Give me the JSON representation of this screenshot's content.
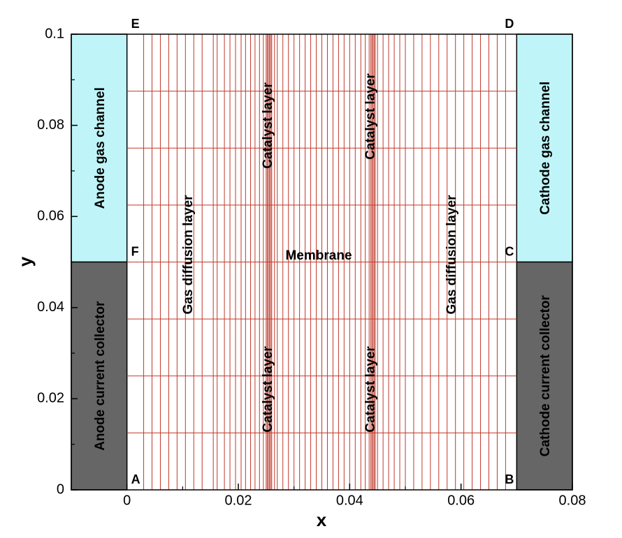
{
  "chart_data": {
    "type": "mesh",
    "x_label": "x",
    "y_label": "y",
    "xlim": [
      -0.01,
      0.08
    ],
    "ylim": [
      0,
      0.1
    ],
    "xticks": [
      0,
      0.02,
      0.04,
      0.06,
      0.08
    ],
    "yticks": [
      0,
      0.02,
      0.04,
      0.06,
      0.08,
      0.1
    ],
    "xminorticks": [
      -0.01,
      0.01,
      0.03,
      0.05,
      0.07
    ],
    "yminorticks": [
      0.01,
      0.03,
      0.05,
      0.07,
      0.09
    ],
    "mesh_color": "#c0392b",
    "mesh_xlim": [
      0,
      0.07
    ],
    "mesh_ylim": [
      0,
      0.1
    ],
    "mesh_x": [
      0.003,
      0.0045,
      0.006,
      0.0075,
      0.009,
      0.0105,
      0.012,
      0.0135,
      0.0155,
      0.0162,
      0.0175,
      0.0185,
      0.0195,
      0.0205,
      0.0213,
      0.0222,
      0.023,
      0.0238,
      0.0245,
      0.025,
      0.0252,
      0.0254,
      0.0256,
      0.0258,
      0.026,
      0.0265,
      0.027,
      0.028,
      0.029,
      0.03,
      0.031,
      0.032,
      0.033,
      0.034,
      0.035,
      0.036,
      0.037,
      0.038,
      0.039,
      0.04,
      0.041,
      0.042,
      0.0428,
      0.0435,
      0.0438,
      0.044,
      0.0442,
      0.0444,
      0.0446,
      0.045,
      0.046,
      0.047,
      0.048,
      0.049,
      0.05,
      0.0515,
      0.053,
      0.0545,
      0.056,
      0.0575,
      0.059,
      0.0605,
      0.062,
      0.0635,
      0.065,
      0.0665,
      0.068
    ],
    "mesh_y": [
      0.0125,
      0.025,
      0.0375,
      0.05,
      0.0625,
      0.075,
      0.0875
    ],
    "regions": [
      {
        "label": "Anode gas channel",
        "color": "#bff5f8",
        "x": [
          -0.01,
          0
        ],
        "y": [
          0.05,
          0.1
        ]
      },
      {
        "label": "Anode current collector",
        "color": "#666666",
        "x": [
          -0.01,
          0
        ],
        "y": [
          0,
          0.05
        ]
      },
      {
        "label": "Cathode gas channel",
        "color": "#bff5f8",
        "x": [
          0.07,
          0.08
        ],
        "y": [
          0.05,
          0.1
        ]
      },
      {
        "label": "Cathode current collector",
        "color": "#666666",
        "x": [
          0.07,
          0.08
        ],
        "y": [
          0,
          0.05
        ]
      }
    ],
    "points": [
      {
        "label": "A",
        "x": 0,
        "y": 0
      },
      {
        "label": "B",
        "x": 0.07,
        "y": 0
      },
      {
        "label": "C",
        "x": 0.07,
        "y": 0.05
      },
      {
        "label": "D",
        "x": 0.07,
        "y": 0.1
      },
      {
        "label": "E",
        "x": 0,
        "y": 0.1
      },
      {
        "label": "F",
        "x": 0,
        "y": 0.05
      }
    ],
    "annotations": [
      "Gas diffusion layer",
      "Catalyst layer",
      "Catalyst layer",
      "Membrane",
      "Catalyst layer",
      "Catalyst layer",
      "Gas diffusion layer"
    ]
  }
}
